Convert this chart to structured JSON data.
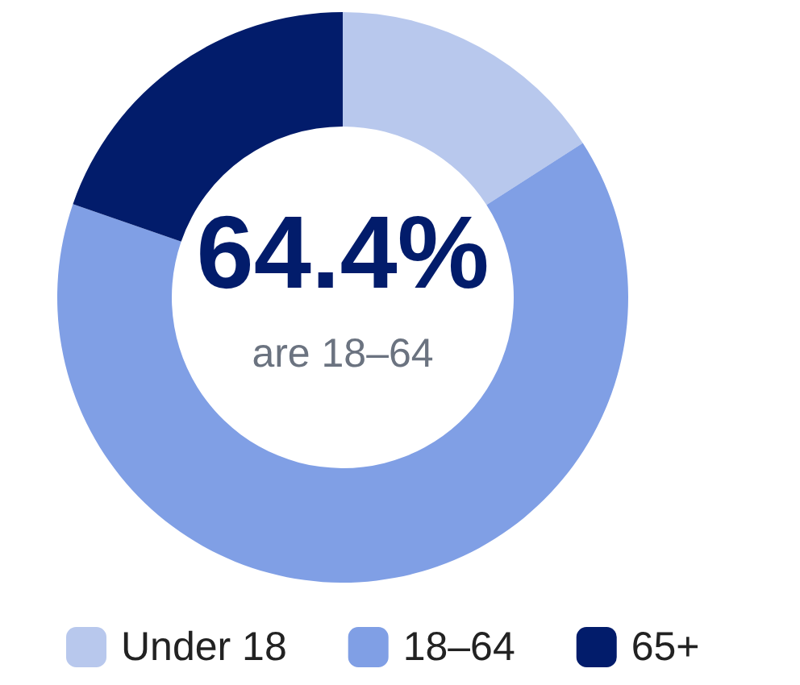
{
  "chart_data": {
    "type": "donut",
    "categories": [
      "Under 18",
      "18–64",
      "65+"
    ],
    "values": [
      15.9,
      64.4,
      19.7
    ],
    "colors": [
      "#b8c8ed",
      "#809fe5",
      "#021c6b"
    ],
    "annotations": [
      "64.4%",
      "are 18–64"
    ],
    "legend": "bottom"
  }
}
